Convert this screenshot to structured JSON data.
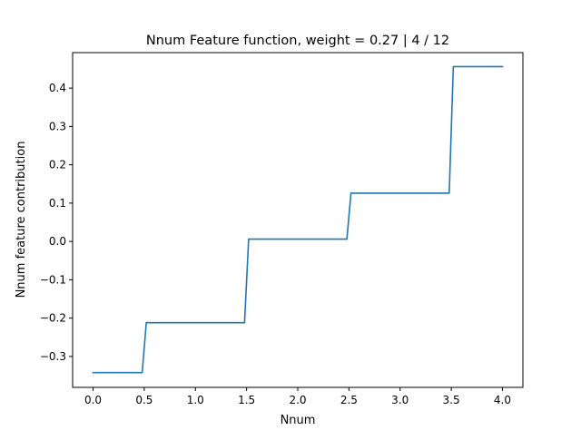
{
  "chart_data": {
    "type": "line",
    "title": "Nnum Feature function, weight = 0.27 | 4 / 12",
    "xlabel": "Nnum",
    "ylabel": "Nnum feature contribution",
    "xlim": [
      -0.2,
      4.2
    ],
    "ylim": [
      -0.3807,
      0.4926
    ],
    "x_ticks": [
      0.0,
      0.5,
      1.0,
      1.5,
      2.0,
      2.5,
      3.0,
      3.5,
      4.0
    ],
    "x_tick_labels": [
      "0.0",
      "0.5",
      "1.0",
      "1.5",
      "2.0",
      "2.5",
      "3.0",
      "3.5",
      "4.0"
    ],
    "y_ticks": [
      -0.3,
      -0.2,
      -0.1,
      0.0,
      0.1,
      0.2,
      0.3,
      0.4
    ],
    "y_tick_labels": [
      "−0.3",
      "−0.2",
      "−0.1",
      "0.0",
      "0.1",
      "0.2",
      "0.3",
      "0.4"
    ],
    "grid": false,
    "legend": "none",
    "series": [
      {
        "color": "#1f77b4",
        "x": [
          0.0,
          0.48,
          0.52,
          1.48,
          1.52,
          2.48,
          2.52,
          3.48,
          3.52,
          4.0
        ],
        "y": [
          -0.342,
          -0.342,
          -0.212,
          -0.212,
          0.006,
          0.006,
          0.126,
          0.126,
          0.456,
          0.456
        ]
      }
    ]
  }
}
